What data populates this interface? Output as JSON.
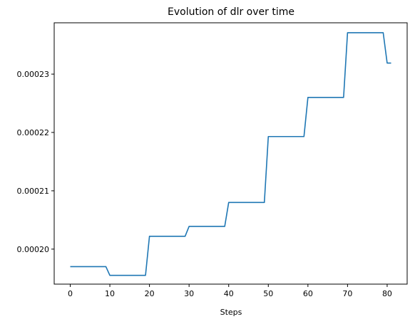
{
  "chart_data": {
    "type": "line",
    "title": "Evolution of dlr over time",
    "xlabel": "Steps",
    "ylabel": "",
    "grid": false,
    "xlim": [
      -4.05,
      85.05
    ],
    "ylim": [
      0.000194,
      0.0002388
    ],
    "xticks": [
      0,
      10,
      20,
      30,
      40,
      50,
      60,
      70,
      80
    ],
    "xtick_labels": [
      "0",
      "10",
      "20",
      "30",
      "40",
      "50",
      "60",
      "70",
      "80"
    ],
    "yticks": [
      0.0002,
      0.00021,
      0.00022,
      0.00023
    ],
    "ytick_labels": [
      "0.00020",
      "0.00021",
      "0.00022",
      "0.00023"
    ],
    "series": [
      {
        "color": "#1f77b4",
        "points": [
          [
            0,
            0.000197
          ],
          [
            9,
            0.000197
          ],
          [
            10,
            0.0001955
          ],
          [
            19,
            0.0001955
          ],
          [
            20,
            0.0002022
          ],
          [
            29,
            0.0002022
          ],
          [
            30,
            0.0002039
          ],
          [
            39,
            0.0002039
          ],
          [
            40,
            0.000208
          ],
          [
            49,
            0.000208
          ],
          [
            50,
            0.0002193
          ],
          [
            59,
            0.0002193
          ],
          [
            60,
            0.000226
          ],
          [
            69,
            0.000226
          ],
          [
            70,
            0.0002371
          ],
          [
            79,
            0.0002371
          ],
          [
            80,
            0.0002319
          ],
          [
            81,
            0.0002319
          ]
        ]
      }
    ]
  }
}
